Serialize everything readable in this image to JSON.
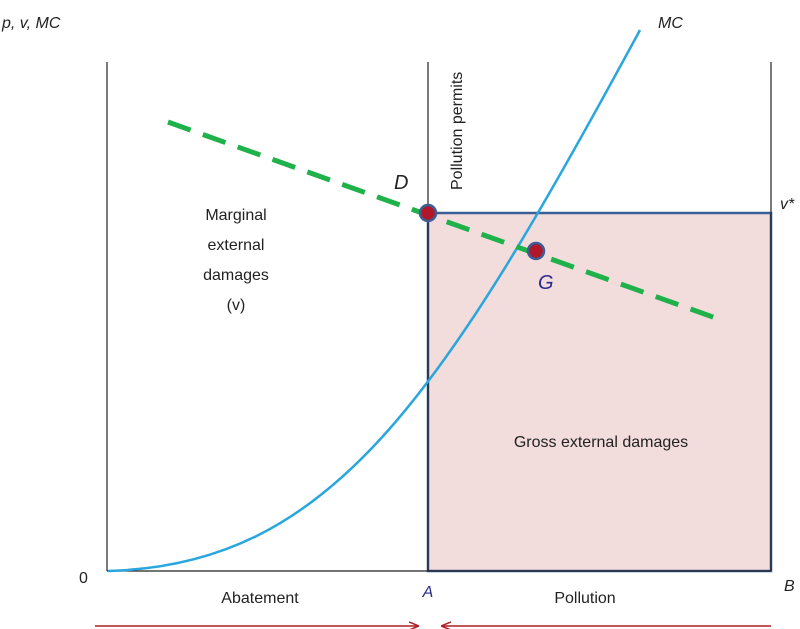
{
  "labels": {
    "y_axis": "p, v, MC",
    "mc_curve": "MC",
    "origin": "0",
    "pollution_permits": "Pollution permits",
    "point_d": "D",
    "point_g": "G",
    "v_star": "v*",
    "marginal_line1": "Marginal",
    "marginal_line2": "external",
    "marginal_line3": "damages",
    "marginal_line4": "(v)",
    "gross_damages": "Gross external damages",
    "abatement": "Abatement",
    "pollution": "Pollution",
    "point_a": "A",
    "point_b": "B"
  },
  "colors": {
    "mc_curve": "#2aa6df",
    "damages_line": "#1fb14a",
    "box_stroke": "#3b5e96",
    "box_fill": "#f2dcdc",
    "points": "#b0182a",
    "arrows": "#b11d25",
    "axis": "#222222",
    "label_blue": "#2a2a8f"
  }
}
